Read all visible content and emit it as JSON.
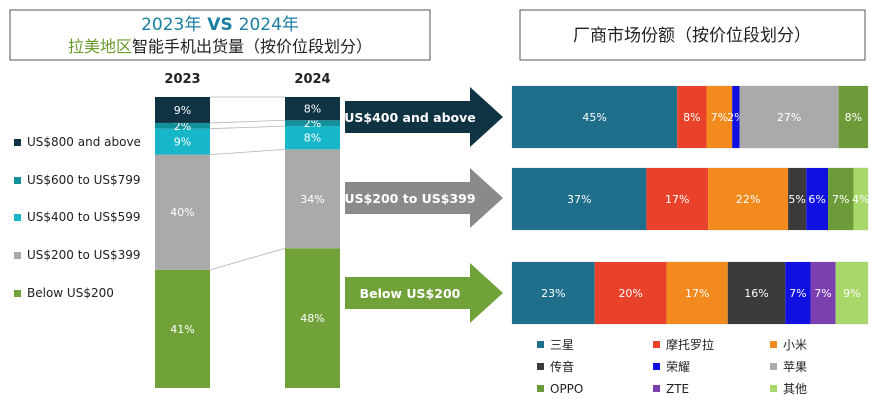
{
  "header": {
    "left_title_line1_a": "2023年",
    "left_title_line1_b": " VS ",
    "left_title_line1_c": "2024年",
    "left_title_line2_a": "拉美地区",
    "left_title_line2_b": "智能手机出货量（按价位段划分）",
    "right_title": "厂商市场份额（按价位段划分）"
  },
  "colors": {
    "title_teal": "#1a7fa0",
    "title_green": "#6a9a2c",
    "arrow_dark": "#0f3342",
    "arrow_gray": "#8a8a8a",
    "arrow_green": "#71a23a"
  },
  "chart_data": [
    {
      "type": "bar",
      "stacked": true,
      "categories": [
        "2023",
        "2024"
      ],
      "series": [
        {
          "name": "Below US$200",
          "color": "#71a23a",
          "values": [
            41,
            48
          ]
        },
        {
          "name": "US$200 to US$399",
          "color": "#aaaaaa",
          "values": [
            40,
            34
          ]
        },
        {
          "name": "US$400 to US$599",
          "color": "#17b7c9",
          "values": [
            9,
            8
          ]
        },
        {
          "name": "US$600 to US$799",
          "color": "#12909c",
          "values": [
            2,
            2
          ]
        },
        {
          "name": "US$800 and above",
          "color": "#0f3342",
          "values": [
            9,
            8
          ]
        }
      ],
      "legend": "left"
    },
    {
      "type": "bar",
      "stacked": true,
      "orientation": "horizontal",
      "categories": [
        "US$400 and above",
        "US$200 to US$399",
        "Below US$200"
      ],
      "series": [
        {
          "name": "三星",
          "color": "#1e6e8c",
          "values": [
            45,
            37,
            23
          ]
        },
        {
          "name": "摩托罗拉",
          "color": "#e8432a",
          "values": [
            8,
            17,
            20
          ]
        },
        {
          "name": "小米",
          "color": "#f28a1d",
          "values": [
            7,
            22,
            17
          ]
        },
        {
          "name": "传音",
          "color": "#3a3a3a",
          "values": [
            0,
            5,
            16
          ]
        },
        {
          "name": "荣耀",
          "color": "#1010e0",
          "values": [
            2,
            6,
            7
          ]
        },
        {
          "name": "苹果",
          "color": "#aaaaaa",
          "values": [
            27,
            0,
            0
          ]
        },
        {
          "name": "ZTE",
          "color": "#7b3fb0",
          "values": [
            0,
            0,
            7
          ]
        },
        {
          "name": "OPPO",
          "color": "#6e9b3a",
          "values": [
            8,
            7,
            0
          ]
        },
        {
          "name": "其他",
          "color": "#a8d86a",
          "values": [
            0,
            4,
            9
          ]
        }
      ],
      "labels": [
        [
          "45%",
          "8%",
          "7%",
          "",
          "2%",
          "27%",
          "",
          "8%",
          ""
        ],
        [
          "37%",
          "17%",
          "22%",
          "5%",
          "6%",
          "",
          "",
          "7%",
          "4%"
        ],
        [
          "23%",
          "20%",
          "17%",
          "16%",
          "7%",
          "",
          "7%",
          "",
          "9%"
        ]
      ],
      "legend": "bottom"
    }
  ]
}
